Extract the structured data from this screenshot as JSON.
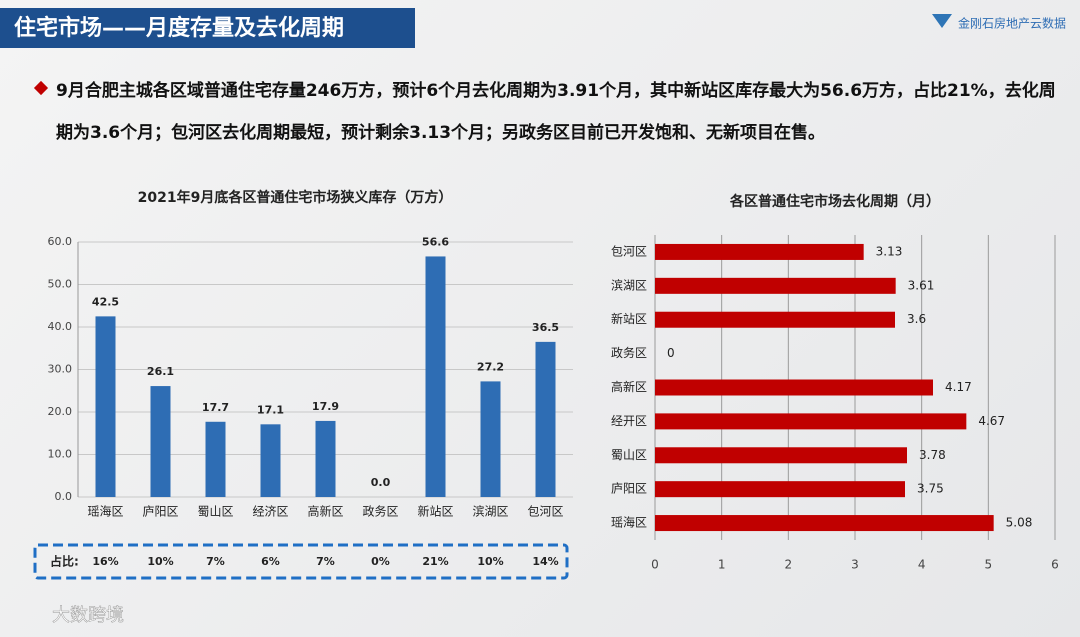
{
  "header": {
    "title": "住宅市场——月度存量及去化周期",
    "logo": "金刚石房地产云数据"
  },
  "bullet": "9月合肥主城各区域普通住宅存量246万方，预计6个月去化周期为3.91个月，其中新站区库存最大为56.6万方，占比21%，去化周期为3.6个月；包河区去化周期最短，预计剩余3.13个月；另政务区目前已开发饱和、无新项目在售。",
  "footer": "大数跨境",
  "chart_data": [
    {
      "type": "bar",
      "title": "2021年9月底各区普通住宅市场狭义库存（万方）",
      "categories": [
        "瑶海区",
        "庐阳区",
        "蜀山区",
        "经济区",
        "高新区",
        "政务区",
        "新站区",
        "滨湖区",
        "包河区"
      ],
      "values": [
        42.5,
        26.1,
        17.7,
        17.1,
        17.9,
        0.0,
        56.6,
        27.2,
        36.5
      ],
      "value_labels": [
        "42.5",
        "26.1",
        "17.7",
        "17.1",
        "17.9",
        "0.0",
        "56.6",
        "27.2",
        "36.5"
      ],
      "color": "#2e6db4",
      "ylim": [
        0,
        60
      ],
      "yticks": [
        {
          "value": 0,
          "label": "0.0"
        },
        {
          "value": 10,
          "label": "10.0"
        },
        {
          "value": 20,
          "label": "20.0"
        },
        {
          "value": 30,
          "label": "30.0"
        },
        {
          "value": 40,
          "label": "40.0"
        },
        {
          "value": 50,
          "label": "50.0"
        },
        {
          "value": 60,
          "label": "60.0"
        }
      ],
      "grid": true,
      "share_row": {
        "label": "占比:",
        "values": [
          "16%",
          "10%",
          "7%",
          "6%",
          "7%",
          "0%",
          "21%",
          "10%",
          "14%"
        ]
      }
    },
    {
      "type": "barh",
      "title": "各区普通住宅市场去化周期（月）",
      "categories": [
        "包河区",
        "滨湖区",
        "新站区",
        "政务区",
        "高新区",
        "经开区",
        "蜀山区",
        "庐阳区",
        "瑶海区"
      ],
      "values": [
        3.13,
        3.61,
        3.6,
        0,
        4.17,
        4.67,
        3.78,
        3.75,
        5.08
      ],
      "color": "#c00000",
      "xlim": [
        0,
        6
      ],
      "xticks": [
        0,
        1,
        2,
        3,
        4,
        5,
        6
      ],
      "grid": true
    }
  ]
}
